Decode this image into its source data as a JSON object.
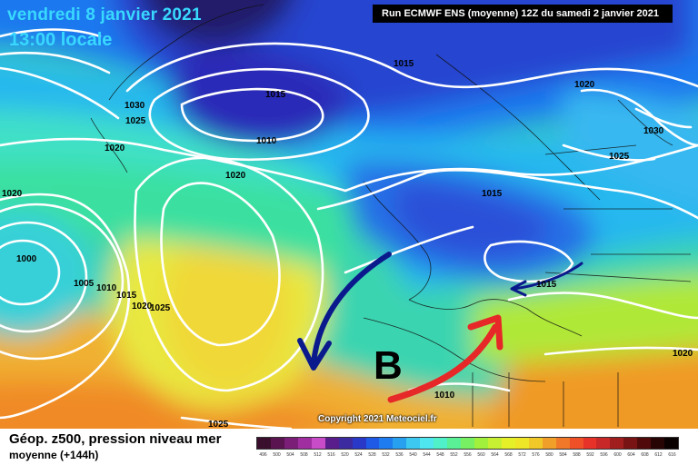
{
  "title": {
    "date": "vendredi 8 janvier 2021",
    "time": "13:00 locale"
  },
  "run_info": "Run ECMWF ENS (moyenne) 12Z du samedi 2 janvier 2021",
  "copyright": "Copyright 2021 Meteociel.fr",
  "low_marker": "B",
  "footer": {
    "title": "Géop. z500, pression niveau mer",
    "subtitle": "moyenne   (+144h)"
  },
  "isobar_labels": [
    "1015",
    "1015",
    "1010",
    "1030",
    "1025",
    "1020",
    "1020",
    "1020",
    "1000",
    "1005",
    "1010",
    "1015",
    "1020",
    "1025",
    "1015",
    "1015",
    "1020",
    "1030",
    "1025",
    "1020",
    "1010",
    "1025"
  ],
  "legend": {
    "labels": [
      "496",
      "500",
      "504",
      "508",
      "512",
      "516",
      "520",
      "524",
      "528",
      "532",
      "536",
      "540",
      "544",
      "548",
      "552",
      "556",
      "560",
      "564",
      "568",
      "572",
      "576",
      "580",
      "584",
      "588",
      "592",
      "596",
      "600",
      "604",
      "608",
      "612",
      "616"
    ],
    "colors": [
      "#3a0f2e",
      "#5a1450",
      "#7a1e78",
      "#a02ea0",
      "#c84bc8",
      "#5a1e8c",
      "#3c2aa0",
      "#2a38c8",
      "#1e5ae6",
      "#1e7cf0",
      "#28a0f0",
      "#3cc8f0",
      "#50e6f0",
      "#50f0c8",
      "#5af096",
      "#78f064",
      "#a0f03c",
      "#c8f032",
      "#e6f028",
      "#f0e628",
      "#f0c828",
      "#f0a028",
      "#f07828",
      "#f05028",
      "#e63228",
      "#c82828",
      "#a01e1e",
      "#781414",
      "#500a0a",
      "#280505",
      "#0a0000"
    ],
    "accent_arrow_blue": "#0a1a8c",
    "accent_arrow_red": "#e62828"
  }
}
